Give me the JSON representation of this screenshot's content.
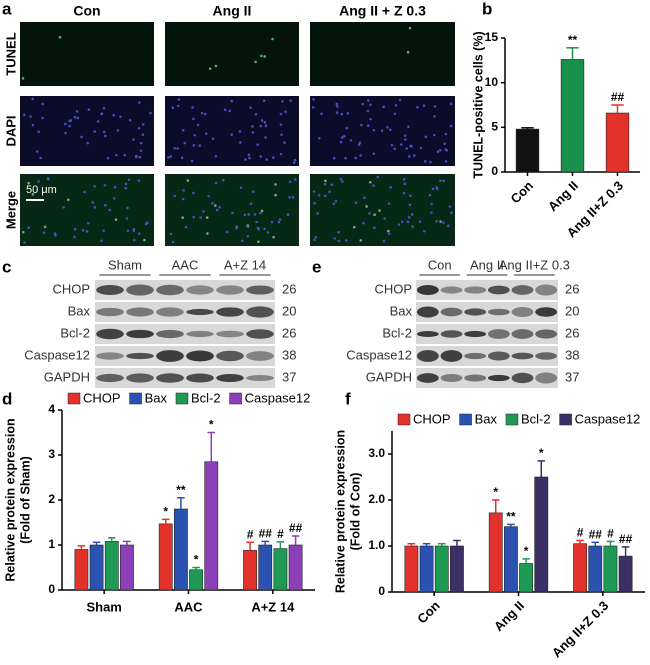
{
  "panel_a": {
    "label": "a",
    "columns": [
      "Con",
      "Ang II",
      "Ang II + Z 0.3"
    ],
    "rows": [
      "TUNEL",
      "DAPI",
      "Merge"
    ],
    "scale_bar": "50 μm"
  },
  "blots": [
    {
      "label": "c",
      "groups": [
        "Sham",
        "AAC",
        "A+Z 14"
      ],
      "rows": [
        "CHOP",
        "Bax",
        "Bcl-2",
        "Caspase12",
        "GAPDH"
      ],
      "kda": [
        26,
        20,
        26,
        38,
        37
      ]
    },
    {
      "label": "e",
      "groups": [
        "Con",
        "Ang II",
        "Ang II+Z 0.3"
      ],
      "rows": [
        "CHOP",
        "Bax",
        "Bcl-2",
        "Caspase12",
        "GAPDH"
      ],
      "kda": [
        26,
        20,
        26,
        38,
        37
      ]
    }
  ],
  "chart_data": [
    {
      "type": "bar",
      "panel": "b",
      "y_label": [
        "TUNEL-positive cells (%)"
      ],
      "categories": [
        "Con",
        "Ang II",
        "Ang II+Z 0.3"
      ],
      "series": [
        {
          "colors": [
            "#111111",
            "#1a8f4c",
            "#e2322b"
          ],
          "values": [
            4.8,
            12.6,
            6.6
          ],
          "errors": [
            0.15,
            1.3,
            0.9
          ],
          "annotations": [
            null,
            "**",
            "##"
          ]
        }
      ],
      "ylim": [
        0,
        15
      ],
      "yticks": [
        0,
        5,
        10,
        15
      ],
      "rotate_labels": true
    },
    {
      "type": "bar",
      "panel": "d",
      "y_label": [
        "Relative protein expression",
        "(Fold of Sham)"
      ],
      "categories": [
        "Sham",
        "AAC",
        "A+Z 14"
      ],
      "series": [
        {
          "name": "CHOP",
          "color": "#e2322b",
          "values": [
            0.9,
            1.47,
            0.88
          ],
          "errors": [
            0.08,
            0.1,
            0.18
          ],
          "annotations": [
            null,
            "*",
            "#"
          ]
        },
        {
          "name": "Bax",
          "color": "#2b52b0",
          "values": [
            1.0,
            1.8,
            1.0
          ],
          "errors": [
            0.06,
            0.25,
            0.08
          ],
          "annotations": [
            null,
            "**",
            "##"
          ]
        },
        {
          "name": "Bcl-2",
          "color": "#1f9a55",
          "values": [
            1.08,
            0.45,
            0.92
          ],
          "errors": [
            0.08,
            0.05,
            0.15
          ],
          "annotations": [
            null,
            "*",
            "#"
          ]
        },
        {
          "name": "Caspase12",
          "color": "#8b3fb8",
          "values": [
            1.0,
            2.85,
            1.0
          ],
          "errors": [
            0.08,
            0.65,
            0.2
          ],
          "annotations": [
            null,
            "*",
            "##"
          ]
        }
      ],
      "ylim": [
        0,
        4
      ],
      "yticks": [
        0,
        1,
        2,
        3,
        4
      ],
      "legend": "top",
      "rotate_labels": false
    },
    {
      "type": "bar",
      "panel": "f",
      "y_label": [
        "Relative protein expression",
        "(Fold of Con)"
      ],
      "categories": [
        "Con",
        "Ang II",
        "Ang II+Z 0.3"
      ],
      "series": [
        {
          "name": "CHOP",
          "color": "#e2322b",
          "values": [
            1.0,
            1.72,
            1.05
          ],
          "errors": [
            0.05,
            0.28,
            0.07
          ],
          "annotations": [
            null,
            "*",
            "#"
          ]
        },
        {
          "name": "Bax",
          "color": "#2b52b0",
          "values": [
            1.0,
            1.42,
            1.0
          ],
          "errors": [
            0.05,
            0.05,
            0.08
          ],
          "annotations": [
            null,
            "**",
            "##"
          ]
        },
        {
          "name": "Bcl-2",
          "color": "#1f9a55",
          "values": [
            1.0,
            0.62,
            1.0
          ],
          "errors": [
            0.05,
            0.1,
            0.1
          ],
          "annotations": [
            null,
            "*",
            "#"
          ]
        },
        {
          "name": "Caspase12",
          "color": "#3b2f66",
          "values": [
            1.0,
            2.5,
            0.78
          ],
          "errors": [
            0.12,
            0.35,
            0.2
          ],
          "annotations": [
            null,
            "*",
            "##"
          ]
        }
      ],
      "ylim": [
        0,
        3.5
      ],
      "yticks": [
        0,
        {
          "value": 1,
          "label": "1.0"
        },
        {
          "value": 2,
          "label": "2.0"
        },
        {
          "value": 3,
          "label": "3.0"
        }
      ],
      "legend": "top",
      "rotate_labels": true
    }
  ]
}
